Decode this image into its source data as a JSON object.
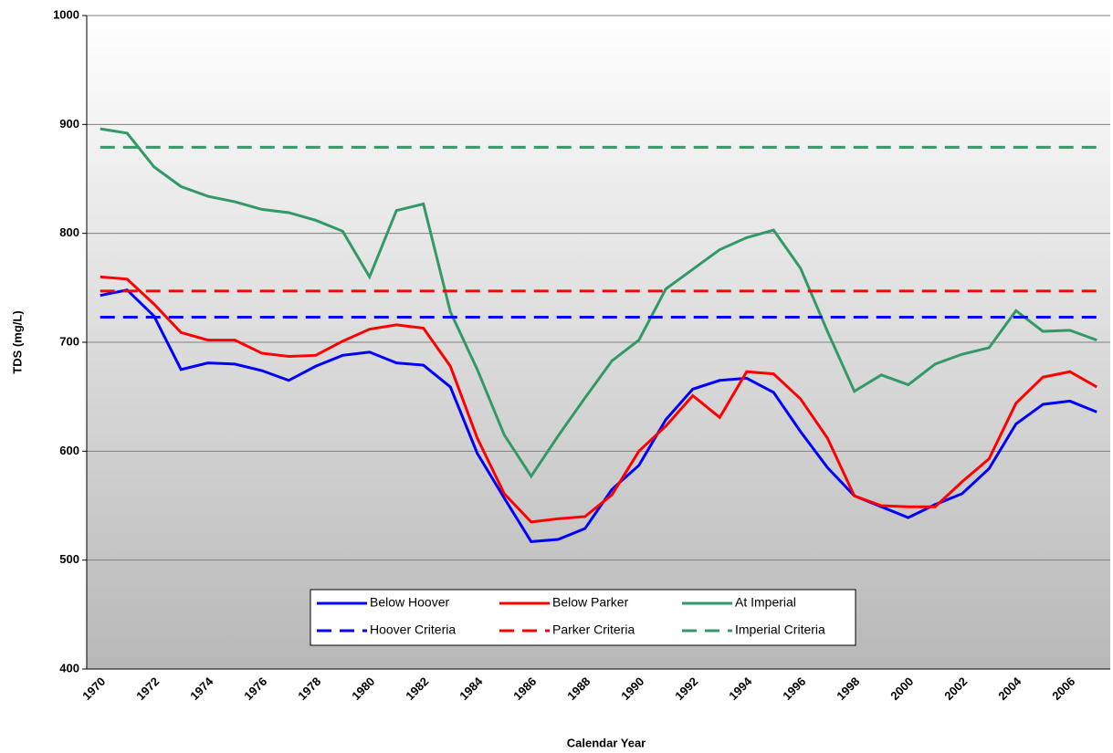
{
  "chart_data": {
    "type": "line",
    "x_label": "Calendar Year",
    "y_label": "TDS (mg/L)",
    "categories": [
      "1970",
      null,
      "1972",
      null,
      "1974",
      null,
      "1976",
      null,
      "1978",
      null,
      "1980",
      null,
      "1982",
      null,
      "1984",
      null,
      "1986",
      null,
      "1988",
      null,
      "1990",
      null,
      "1992",
      null,
      "1994",
      null,
      "1996",
      null,
      "1998",
      null,
      "2000",
      null,
      "2002",
      null,
      "2004",
      null,
      "2006",
      null
    ],
    "ylim": [
      400,
      1000
    ],
    "yticks": [
      400,
      500,
      600,
      700,
      800,
      900,
      1000
    ],
    "grid": true,
    "series": [
      {
        "name": "Below Hoover",
        "color": "#0000ff",
        "dashed": false,
        "values": [
          743,
          748,
          724,
          675,
          681,
          680,
          674,
          665,
          678,
          688,
          691,
          681,
          679,
          659,
          598,
          557,
          517,
          519,
          529,
          565,
          587,
          629,
          657,
          665,
          667,
          654,
          618,
          585,
          559,
          549,
          539,
          551,
          561,
          584,
          625,
          643,
          646,
          636
        ]
      },
      {
        "name": "Below Parker",
        "color": "#ff0000",
        "dashed": false,
        "values": [
          760,
          758,
          735,
          709,
          702,
          702,
          690,
          687,
          688,
          701,
          712,
          716,
          713,
          678,
          612,
          561,
          535,
          538,
          540,
          560,
          600,
          623,
          651,
          631,
          673,
          671,
          648,
          612,
          559,
          550,
          549,
          549,
          572,
          593,
          644,
          668,
          673,
          659
        ]
      },
      {
        "name": "At Imperial",
        "color": "#339966",
        "dashed": false,
        "values": [
          896,
          892,
          861,
          843,
          834,
          829,
          822,
          819,
          812,
          802,
          760,
          821,
          827,
          728,
          675,
          615,
          577,
          614,
          649,
          683,
          702,
          749,
          767,
          785,
          796,
          803,
          768,
          710,
          655,
          670,
          661,
          680,
          689,
          695,
          729,
          710,
          711,
          702
        ]
      },
      {
        "name": "Hoover Criteria",
        "color": "#0000ff",
        "dashed": true,
        "values": [
          723,
          723,
          723,
          723,
          723,
          723,
          723,
          723,
          723,
          723,
          723,
          723,
          723,
          723,
          723,
          723,
          723,
          723,
          723,
          723,
          723,
          723,
          723,
          723,
          723,
          723,
          723,
          723,
          723,
          723,
          723,
          723,
          723,
          723,
          723,
          723,
          723,
          723
        ]
      },
      {
        "name": "Parker Criteria",
        "color": "#ff0000",
        "dashed": true,
        "values": [
          747,
          747,
          747,
          747,
          747,
          747,
          747,
          747,
          747,
          747,
          747,
          747,
          747,
          747,
          747,
          747,
          747,
          747,
          747,
          747,
          747,
          747,
          747,
          747,
          747,
          747,
          747,
          747,
          747,
          747,
          747,
          747,
          747,
          747,
          747,
          747,
          747,
          747
        ]
      },
      {
        "name": "Imperial Criteria",
        "color": "#339966",
        "dashed": true,
        "values": [
          879,
          879,
          879,
          879,
          879,
          879,
          879,
          879,
          879,
          879,
          879,
          879,
          879,
          879,
          879,
          879,
          879,
          879,
          879,
          879,
          879,
          879,
          879,
          879,
          879,
          879,
          879,
          879,
          879,
          879,
          879,
          879,
          879,
          879,
          879,
          879,
          879,
          879
        ]
      }
    ]
  }
}
